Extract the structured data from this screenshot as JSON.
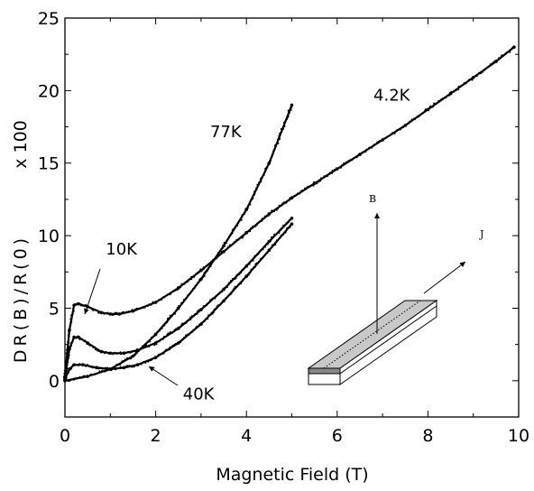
{
  "chart_data": {
    "type": "scatter",
    "title": "",
    "xlabel": "Magnetic Field (T)",
    "ylabel": "DR(B)/R(0)",
    "ylabel_multiplier": "x 100",
    "xlim": [
      0,
      10
    ],
    "ylim": [
      -2.5,
      25
    ],
    "xticks": [
      "0",
      "2",
      "4",
      "6",
      "8",
      "10"
    ],
    "yticks": [
      "0",
      "5",
      "10",
      "15",
      "20",
      "25"
    ],
    "grid": false,
    "series": [
      {
        "name": "4.2K",
        "x": [
          0,
          0.1,
          0.2,
          0.3,
          0.5,
          0.8,
          1.0,
          1.2,
          1.5,
          2.0,
          2.5,
          3.0,
          3.5,
          4.0,
          4.5,
          5.0,
          5.5,
          6.0,
          6.5,
          7.0,
          7.5,
          8.0,
          8.5,
          9.0,
          9.5,
          9.9
        ],
        "y": [
          0.3,
          3.5,
          5.2,
          5.3,
          5.1,
          4.7,
          4.6,
          4.6,
          4.8,
          5.4,
          6.4,
          7.6,
          8.9,
          10.2,
          11.5,
          12.6,
          13.6,
          14.6,
          15.6,
          16.6,
          17.6,
          18.7,
          19.8,
          20.9,
          22.0,
          23.0
        ]
      },
      {
        "name": "10K",
        "x": [
          0,
          0.1,
          0.2,
          0.3,
          0.5,
          0.8,
          1.0,
          1.3,
          1.6,
          2.0,
          2.5,
          3.0,
          3.5,
          4.0,
          4.5,
          5.0
        ],
        "y": [
          0.2,
          2.2,
          3.0,
          3.0,
          2.6,
          2.0,
          1.9,
          1.9,
          2.1,
          2.6,
          3.6,
          4.9,
          6.3,
          7.9,
          9.6,
          11.2
        ]
      },
      {
        "name": "40K",
        "x": [
          0,
          0.1,
          0.2,
          0.4,
          0.7,
          1.0,
          1.3,
          1.6,
          2.0,
          2.5,
          3.0,
          3.5,
          4.0,
          4.5,
          5.0
        ],
        "y": [
          0.1,
          0.8,
          1.1,
          1.1,
          0.9,
          0.8,
          0.9,
          1.1,
          1.6,
          2.6,
          3.9,
          5.5,
          7.2,
          9.0,
          10.8
        ]
      },
      {
        "name": "77K",
        "x": [
          0,
          0.5,
          1.0,
          1.5,
          2.0,
          2.5,
          3.0,
          3.5,
          4.0,
          4.5,
          5.0
        ],
        "y": [
          0.0,
          0.3,
          0.8,
          1.7,
          3.2,
          5.0,
          7.0,
          9.3,
          11.8,
          15.0,
          19.0
        ]
      }
    ],
    "annotations": [
      {
        "text": "4.2K",
        "x": 6.8,
        "y": 19.3
      },
      {
        "text": "77K",
        "x": 3.2,
        "y": 16.8
      },
      {
        "text": "10K",
        "x": 0.9,
        "y": 8.7
      },
      {
        "text": "40K",
        "x": 2.6,
        "y": -1.3
      }
    ],
    "inset": {
      "labels": [
        "B",
        "J"
      ]
    }
  }
}
